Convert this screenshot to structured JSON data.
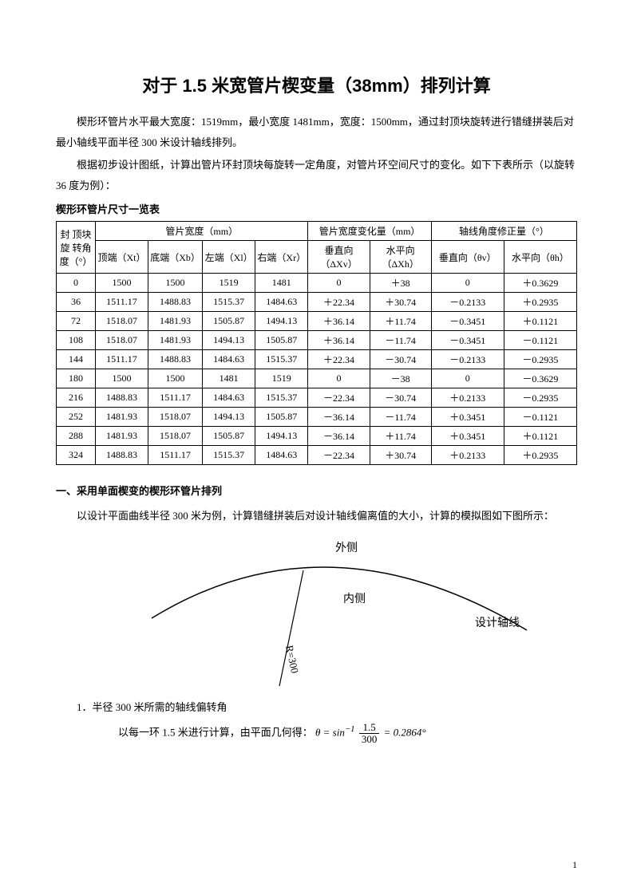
{
  "title": "对于 1.5 米宽管片楔变量（38mm）排列计算",
  "para1": "楔形环管片水平最大宽度：1519mm，最小宽度 1481mm，宽度：1500mm，通过封顶块旋转进行错缝拼装后对最小轴线平面半径 300 米设计轴线排列。",
  "para2": "根据初步设计图纸，计算出管片环封顶块每旋转一定角度，对管片环空间尺寸的变化。如下下表所示（以旋转 36 度为例）：",
  "table_caption": "楔形环管片尺寸一览表",
  "table": {
    "header_group1": "封 顶块旋 转角度（°）",
    "header_group2": "管片宽度（mm）",
    "header_group3": "管片宽度变化量（mm）",
    "header_group4": "轴线角度修正量（°）",
    "sub_xt": "顶端（Xt）",
    "sub_xb": "底端（Xb）",
    "sub_xl": "左端（Xl）",
    "sub_xr": "右端（Xr）",
    "sub_dxv": "垂直向（ΔXv）",
    "sub_dxh": "水平向（ΔXh）",
    "sub_thv": "垂直向（θv）",
    "sub_thh": "水平向（θh）",
    "rows": [
      {
        "a": "0",
        "xt": "1500",
        "xb": "1500",
        "xl": "1519",
        "xr": "1481",
        "dxv": "0",
        "dxh": "＋38",
        "thv": "0",
        "thh": "＋0.3629"
      },
      {
        "a": "36",
        "xt": "1511.17",
        "xb": "1488.83",
        "xl": "1515.37",
        "xr": "1484.63",
        "dxv": "＋22.34",
        "dxh": "＋30.74",
        "thv": "－0.2133",
        "thh": "＋0.2935"
      },
      {
        "a": "72",
        "xt": "1518.07",
        "xb": "1481.93",
        "xl": "1505.87",
        "xr": "1494.13",
        "dxv": "＋36.14",
        "dxh": "＋11.74",
        "thv": "－0.3451",
        "thh": "＋0.1121"
      },
      {
        "a": "108",
        "xt": "1518.07",
        "xb": "1481.93",
        "xl": "1494.13",
        "xr": "1505.87",
        "dxv": "＋36.14",
        "dxh": "－11.74",
        "thv": "－0.3451",
        "thh": "－0.1121"
      },
      {
        "a": "144",
        "xt": "1511.17",
        "xb": "1488.83",
        "xl": "1484.63",
        "xr": "1515.37",
        "dxv": "＋22.34",
        "dxh": "－30.74",
        "thv": "－0.2133",
        "thh": "－0.2935"
      },
      {
        "a": "180",
        "xt": "1500",
        "xb": "1500",
        "xl": "1481",
        "xr": "1519",
        "dxv": "0",
        "dxh": "－38",
        "thv": "0",
        "thh": "－0.3629"
      },
      {
        "a": "216",
        "xt": "1488.83",
        "xb": "1511.17",
        "xl": "1484.63",
        "xr": "1515.37",
        "dxv": "－22.34",
        "dxh": "－30.74",
        "thv": "＋0.2133",
        "thh": "－0.2935"
      },
      {
        "a": "252",
        "xt": "1481.93",
        "xb": "1518.07",
        "xl": "1494.13",
        "xr": "1505.87",
        "dxv": "－36.14",
        "dxh": "－11.74",
        "thv": "＋0.3451",
        "thh": "－0.1121"
      },
      {
        "a": "288",
        "xt": "1481.93",
        "xb": "1518.07",
        "xl": "1505.87",
        "xr": "1494.13",
        "dxv": "－36.14",
        "dxh": "＋11.74",
        "thv": "＋0.3451",
        "thh": "＋0.1121"
      },
      {
        "a": "324",
        "xt": "1488.83",
        "xb": "1511.17",
        "xl": "1515.37",
        "xr": "1484.63",
        "dxv": "－22.34",
        "dxh": "＋30.74",
        "thv": "＋0.2133",
        "thh": "＋0.2935"
      }
    ]
  },
  "section1_heading": "一、采用单面楔变的楔形环管片排列",
  "section1_para1": "以设计平面曲线半径 300 米为例，计算错缝拼装后对设计轴线偏离值的大小，计算的模拟图如下图所示：",
  "diagram": {
    "label_outer": "外侧",
    "label_inner": "内侧",
    "label_axis": "设计轴线",
    "label_r": "R=300",
    "stroke_color": "#000000",
    "stroke_width": 1.5
  },
  "item1_label": "1．半径 300 米所需的轴线偏转角",
  "item1_text_prefix": "以每一环 1.5 米进行计算，由平面几何得：",
  "formula": {
    "theta": "θ",
    "eq": " = sin",
    "sup": "−1",
    "num": "1.5",
    "den": "300",
    "result": " = 0.2864°"
  },
  "pagenum": "1"
}
